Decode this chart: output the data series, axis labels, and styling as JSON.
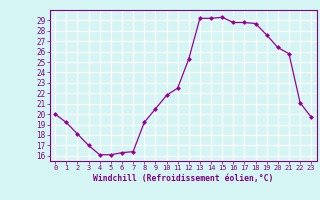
{
  "x": [
    0,
    1,
    2,
    3,
    4,
    5,
    6,
    7,
    8,
    9,
    10,
    11,
    12,
    13,
    14,
    15,
    16,
    17,
    18,
    19,
    20,
    21,
    22,
    23
  ],
  "y": [
    20,
    19.2,
    18.1,
    17.0,
    16.1,
    16.1,
    16.3,
    16.4,
    19.2,
    20.5,
    21.8,
    22.5,
    25.3,
    29.2,
    29.2,
    29.3,
    28.8,
    28.8,
    28.7,
    27.6,
    26.4,
    25.8,
    21.1,
    19.7
  ],
  "line_color": "#990099",
  "marker": "D",
  "marker_size": 2.0,
  "bg_color": "#d5f5f5",
  "grid_color": "#ffffff",
  "xlabel": "Windchill (Refroidissement éolien,°C)",
  "ylabel_ticks": [
    16,
    17,
    18,
    19,
    20,
    21,
    22,
    23,
    24,
    25,
    26,
    27,
    28,
    29
  ],
  "xlim": [
    -0.5,
    23.5
  ],
  "ylim": [
    15.5,
    30.0
  ],
  "xlabel_color": "#800080",
  "tick_color": "#800080",
  "tick_label_color": "#800080",
  "spine_color": "#800080"
}
